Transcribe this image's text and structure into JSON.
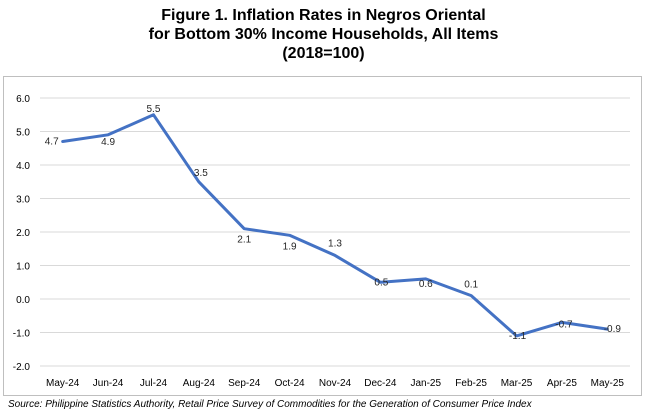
{
  "title_lines": [
    "Figure 1. Inflation Rates in Negros Oriental",
    "for Bottom 30% Income Households, All Items",
    "(2018=100)"
  ],
  "source": "Source: Philippine Statistics Authority, Retail Price Survey of Commodities for the Generation of Consumer Price Index",
  "colors": {
    "line": "#4472c4",
    "grid": "#d9d9d9"
  },
  "chart_data": {
    "type": "line",
    "categories": [
      "May-24",
      "Jun-24",
      "Jul-24",
      "Aug-24",
      "Sep-24",
      "Oct-24",
      "Nov-24",
      "Dec-24",
      "Jan-25",
      "Feb-25",
      "Mar-25",
      "Apr-25",
      "May-25"
    ],
    "series": [
      {
        "values": [
          4.7,
          4.9,
          5.5,
          3.5,
          2.1,
          1.9,
          1.3,
          0.5,
          0.6,
          0.1,
          -1.1,
          -0.7,
          -0.9
        ]
      }
    ],
    "data_labels": [
      "4.7",
      "4.9",
      "5.5",
      "3.5",
      "2.1",
      "1.9",
      "1.3",
      "0.5",
      "0.6",
      "0.1",
      "-1.1",
      "-0.7",
      "-0.9"
    ],
    "ylim": [
      -2.0,
      6.0
    ],
    "yticks": [
      "6.0",
      "5.0",
      "4.0",
      "3.0",
      "2.0",
      "1.0",
      "0.0",
      "-1.0",
      "-2.0"
    ],
    "ytick_values": [
      6,
      5,
      4,
      3,
      2,
      1,
      0,
      -1,
      -2
    ],
    "grid": true,
    "legend": "none"
  }
}
